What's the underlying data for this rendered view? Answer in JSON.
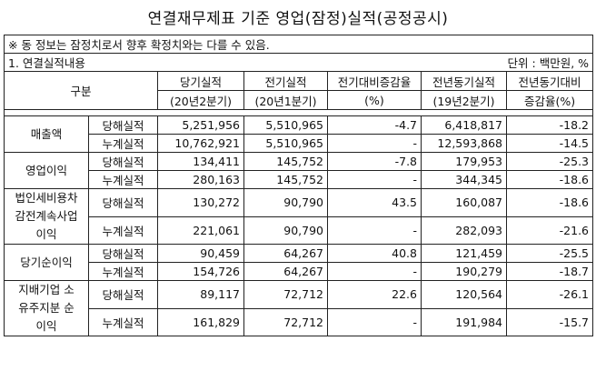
{
  "title": "연결재무제표 기준 영업(잠정)실적(공정공시)",
  "notice": "※ 동 정보는 잠정치로서 향후 확정치와는 다를 수 있음.",
  "section": {
    "label": "1. 연결실적내용",
    "unit": "단위 : 백만원, %"
  },
  "header": {
    "category": "구분",
    "current": "당기실적",
    "current_period": "(20년2분기)",
    "previous": "전기실적",
    "previous_period": "(20년1분기)",
    "qoq": "전기대비증감율",
    "qoq_unit": "(%)",
    "yoy_actual": "전년동기실적",
    "yoy_period": "(19년2분기)",
    "yoy_rate_l1": "전년동기대비",
    "yoy_rate_l2": "증감율(%)"
  },
  "rows": [
    {
      "name_lines": [
        "매출액"
      ],
      "quarter": {
        "label": "당해실적",
        "current": "5,251,956",
        "previous": "5,510,965",
        "qoq": "-4.7",
        "yoy": "6,418,817",
        "yoy_rate": "-18.2"
      },
      "cumulative": {
        "label": "누계실적",
        "current": "10,762,921",
        "previous": "5,510,965",
        "qoq": "-",
        "yoy": "12,593,868",
        "yoy_rate": "-14.5"
      }
    },
    {
      "name_lines": [
        "영업이익"
      ],
      "quarter": {
        "label": "당해실적",
        "current": "134,411",
        "previous": "145,752",
        "qoq": "-7.8",
        "yoy": "179,953",
        "yoy_rate": "-25.3"
      },
      "cumulative": {
        "label": "누계실적",
        "current": "280,163",
        "previous": "145,752",
        "qoq": "-",
        "yoy": "344,345",
        "yoy_rate": "-18.6"
      }
    },
    {
      "name_lines": [
        "법인세비용차",
        "감전계속사업",
        "이익"
      ],
      "quarter": {
        "label": "당해실적",
        "current": "130,272",
        "previous": "90,790",
        "qoq": "43.5",
        "yoy": "160,087",
        "yoy_rate": "-18.6"
      },
      "cumulative": {
        "label": "누계실적",
        "current": "221,061",
        "previous": "90,790",
        "qoq": "-",
        "yoy": "282,093",
        "yoy_rate": "-21.6"
      }
    },
    {
      "name_lines": [
        "당기순이익"
      ],
      "quarter": {
        "label": "당해실적",
        "current": "90,459",
        "previous": "64,267",
        "qoq": "40.8",
        "yoy": "121,459",
        "yoy_rate": "-25.5"
      },
      "cumulative": {
        "label": "누계실적",
        "current": "154,726",
        "previous": "64,267",
        "qoq": "-",
        "yoy": "190,279",
        "yoy_rate": "-18.7"
      }
    },
    {
      "name_lines": [
        "지배기업 소",
        "유주지분 순",
        "이익"
      ],
      "quarter": {
        "label": "당해실적",
        "current": "89,117",
        "previous": "72,712",
        "qoq": "22.6",
        "yoy": "120,564",
        "yoy_rate": "-26.1"
      },
      "cumulative": {
        "label": "누계실적",
        "current": "161,829",
        "previous": "72,712",
        "qoq": "-",
        "yoy": "191,984",
        "yoy_rate": "-15.7"
      }
    }
  ]
}
